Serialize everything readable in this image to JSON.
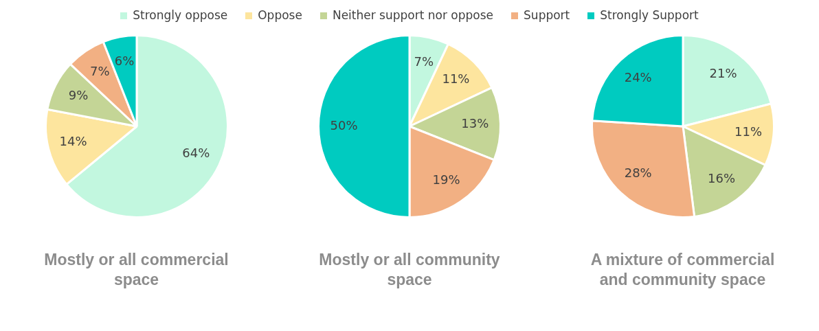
{
  "chart_data": [
    {
      "type": "pie",
      "title": "Mostly or all commercial space",
      "categories": [
        "Strongly oppose",
        "Oppose",
        "Neither support nor oppose",
        "Support",
        "Strongly Support"
      ],
      "values": [
        64,
        14,
        9,
        7,
        6
      ],
      "value_labels": [
        "64%",
        "14%",
        "9%",
        "7%",
        "6%"
      ],
      "colors": [
        "#c2f7df",
        "#fde59e",
        "#c4d596",
        "#f2b083",
        "#00cbc0"
      ],
      "legend": "top"
    },
    {
      "type": "pie",
      "title": "Mostly or all community space",
      "categories": [
        null,
        null,
        null,
        null,
        null
      ],
      "values": [
        7,
        11,
        13,
        19,
        50
      ],
      "value_labels": [
        "7%",
        "11%",
        "13%",
        "19%",
        "50%"
      ],
      "colors": [
        "#c2f7df",
        "#fde59e",
        "#c4d596",
        "#f2b083",
        "#00cbc0"
      ]
    },
    {
      "type": "pie",
      "title": "A mixture of commercial and community space",
      "categories": [
        null,
        null,
        null,
        null,
        null
      ],
      "values": [
        21,
        11,
        16,
        28,
        24
      ],
      "value_labels": [
        "21%",
        "11%",
        "16%",
        "28%",
        "24%"
      ],
      "colors": [
        "#c2f7df",
        "#fde59e",
        "#c4d596",
        "#f2b083",
        "#00cbc0"
      ]
    }
  ]
}
